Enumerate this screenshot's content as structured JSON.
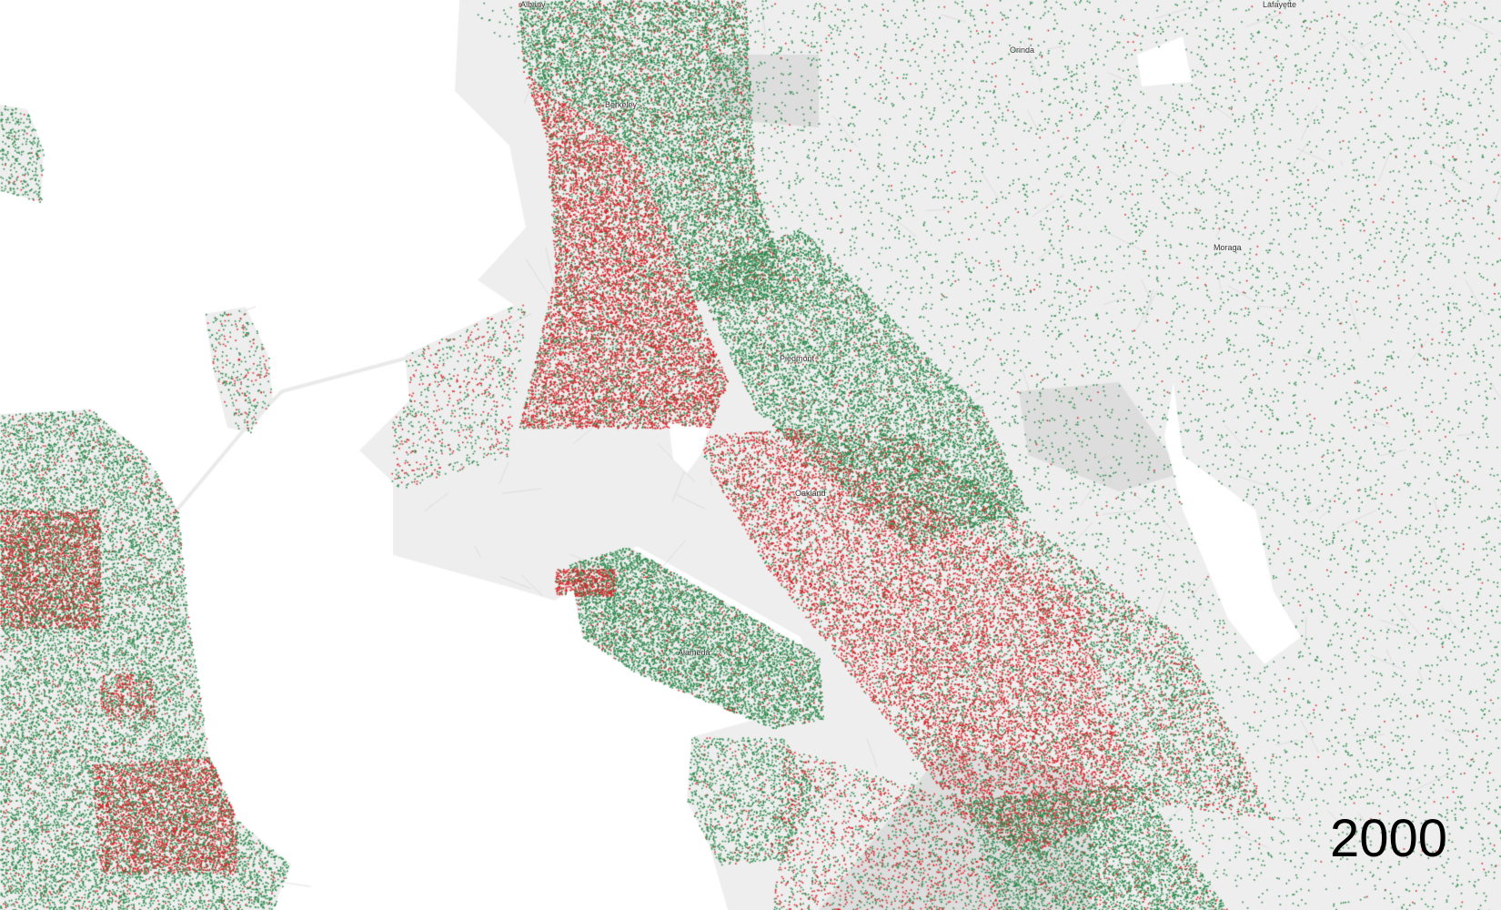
{
  "map": {
    "year_label": "2000",
    "places": [
      {
        "id": "albany",
        "name": "Albany"
      },
      {
        "id": "berkeley",
        "name": "Berkeley"
      },
      {
        "id": "orinda",
        "name": "Orinda"
      },
      {
        "id": "lafayette",
        "name": "Lafayette"
      },
      {
        "id": "moraga",
        "name": "Moraga"
      },
      {
        "id": "piedmont",
        "name": "Piedmont"
      },
      {
        "id": "oakland",
        "name": "Oakland"
      },
      {
        "id": "alameda",
        "name": "Alameda"
      }
    ],
    "colors": {
      "water": "#ffffff",
      "land": "#eeeeee",
      "land_dark": "#dddddd",
      "dot_green": "#2e8b4e",
      "dot_red": "#d9262b"
    }
  }
}
